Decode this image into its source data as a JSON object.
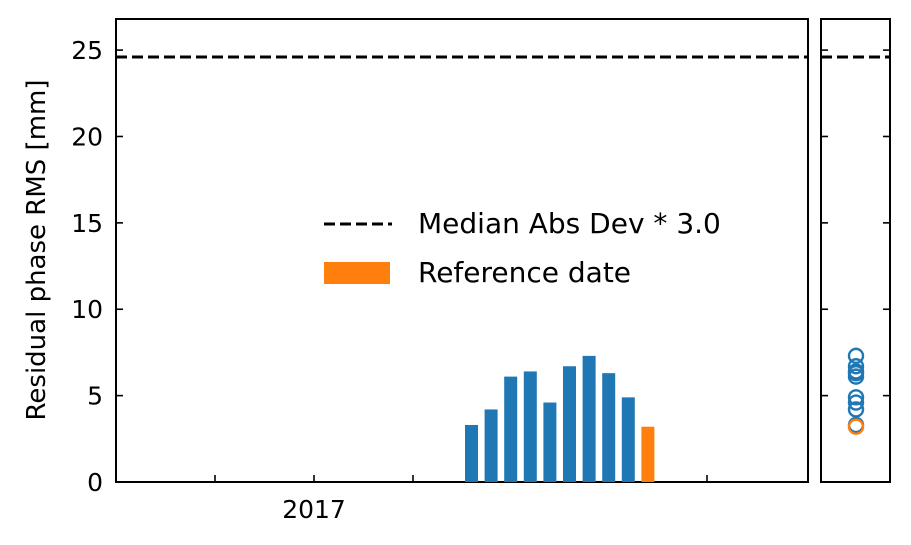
{
  "chart_data": [
    {
      "type": "bar",
      "ylabel": "Residual phase RMS [mm]",
      "xlabel": "",
      "title": "",
      "ylim": [
        0,
        26.8
      ],
      "yticks": [
        0,
        5,
        10,
        15,
        20,
        25
      ],
      "x_axis": {
        "kind": "date",
        "tick_labels": [
          "2017"
        ]
      },
      "threshold": {
        "value": 24.6,
        "label": "Median Abs Dev * 3.0",
        "style": "dashed",
        "color": "#000000"
      },
      "series": [
        {
          "name": "",
          "color": "#1f77b4",
          "values": [
            3.3,
            4.2,
            6.1,
            6.4,
            4.6,
            6.7,
            7.3,
            6.3,
            4.9
          ]
        },
        {
          "name": "Reference date",
          "color": "#ff7f0e",
          "values": [
            3.2
          ]
        }
      ],
      "legend": {
        "placement": "center-right",
        "entries": [
          "Median Abs Dev * 3.0",
          "Reference date"
        ]
      },
      "grid": false
    },
    {
      "type": "scatter",
      "ylim": [
        0,
        26.8
      ],
      "marker": "open-circle",
      "threshold": {
        "value": 24.6,
        "style": "dashed",
        "color": "#000000"
      },
      "series": [
        {
          "name": "",
          "color": "#1f77b4",
          "values": [
            3.3,
            4.2,
            4.6,
            4.9,
            6.1,
            6.3,
            6.4,
            6.7,
            7.3
          ]
        },
        {
          "name": "",
          "color": "#ff7f0e",
          "values": [
            3.2
          ]
        }
      ]
    }
  ]
}
